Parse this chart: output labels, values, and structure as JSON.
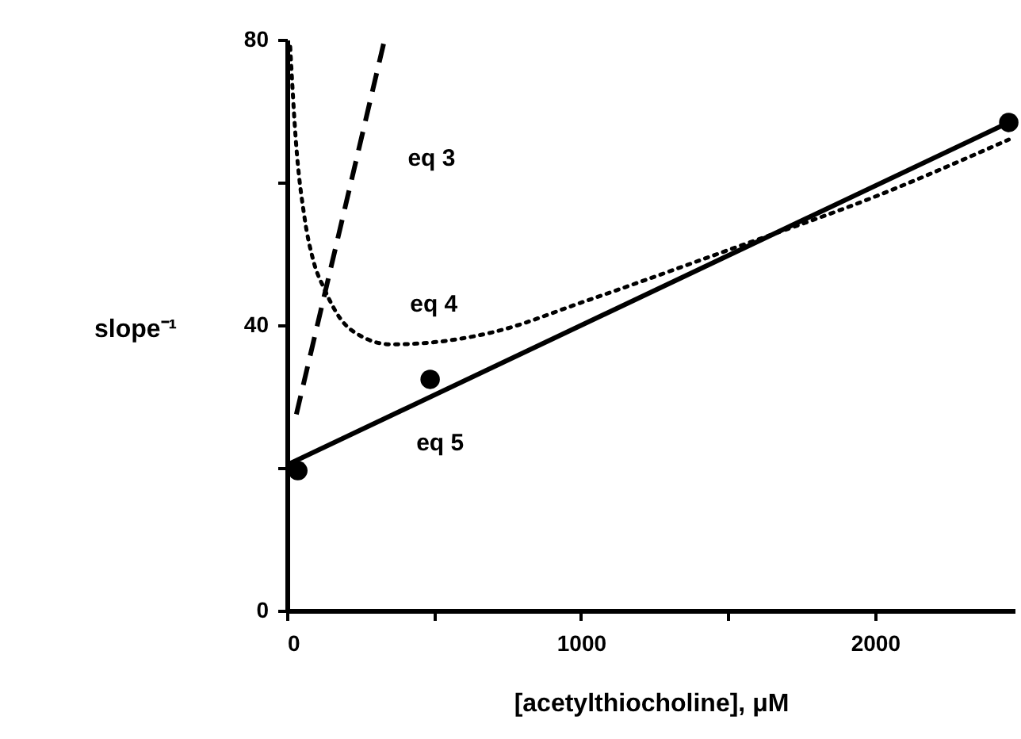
{
  "chart_data": {
    "type": "line",
    "xlabel": "[acetylthiocholine], μM",
    "ylabel": "slope⁻¹",
    "xlim": [
      0,
      2475
    ],
    "xticks": [
      0,
      {
        "value": 500,
        "label": null
      },
      1000,
      {
        "value": 1500,
        "label": null
      },
      2000
    ],
    "ylim": [
      0,
      80
    ],
    "yticks": [
      0,
      {
        "value": 20,
        "label": null
      },
      40,
      {
        "value": 60,
        "label": null
      },
      80
    ],
    "grid": false,
    "series": [
      {
        "color": "#000000",
        "line_style": "dashed",
        "x": [
          32,
          332
        ],
        "values": [
          27.5,
          80
        ]
      },
      {
        "color": "#000000",
        "line_style": "dotted",
        "x": [
          11,
          30,
          60,
          90,
          128,
          180,
          250,
          353,
          500,
          700,
          1011,
          1500,
          2000,
          2455
        ],
        "values": [
          79,
          66,
          55,
          49,
          45,
          41,
          38.5,
          37.3,
          37.6,
          39,
          43.3,
          50.5,
          58,
          66
        ]
      },
      {
        "color": "#000000",
        "line_style": "solid",
        "x": [
          0,
          2455
        ],
        "values": [
          20.4,
          68.4
        ]
      },
      {
        "type": "scatter",
        "color": "#000000",
        "marker": "circle",
        "x": [
          37,
          487,
          2455
        ],
        "values": [
          19.6,
          32.4,
          68.4
        ]
      }
    ],
    "annotations": [
      {
        "text": "eq 3",
        "x": 260,
        "y": 67.4
      },
      {
        "text": "eq 4",
        "x": 300,
        "y": 37.5
      },
      {
        "text": "eq 5",
        "x": 305,
        "y": 26.4
      }
    ]
  }
}
